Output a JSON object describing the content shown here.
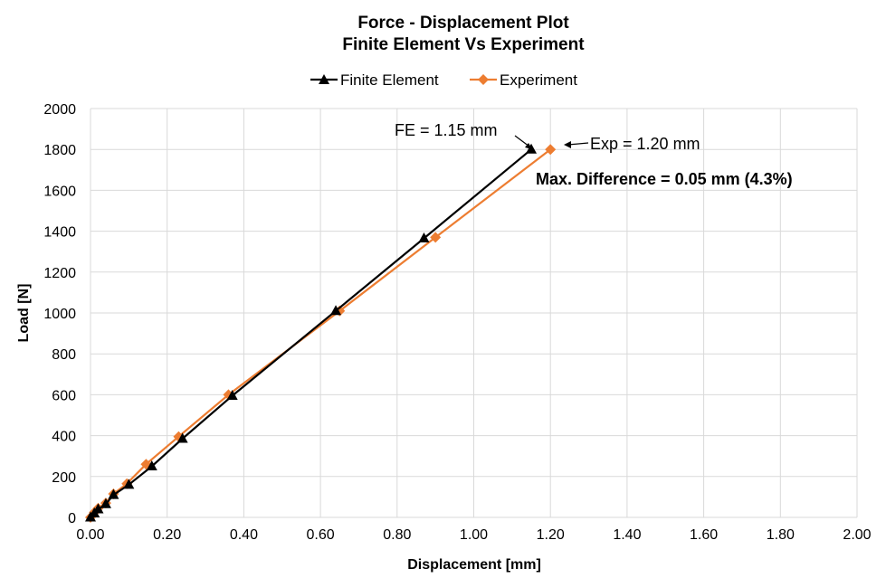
{
  "chart_data": {
    "type": "line",
    "title": "Force - Displacement Plot",
    "subtitle": "Finite Element Vs Experiment",
    "xlabel": "Displacement [mm]",
    "ylabel": "Load [N]",
    "xlim": [
      0,
      2.0
    ],
    "ylim": [
      0,
      2000
    ],
    "x_ticks": [
      "0.00",
      "0.20",
      "0.40",
      "0.60",
      "0.80",
      "1.00",
      "1.20",
      "1.40",
      "1.60",
      "1.80",
      "2.00"
    ],
    "y_ticks": [
      "0",
      "200",
      "400",
      "600",
      "800",
      "1000",
      "1200",
      "1400",
      "1600",
      "1800",
      "2000"
    ],
    "grid": "vertical and horizontal",
    "legend_position": "top",
    "series": [
      {
        "name": "Finite Element",
        "color": "#000000",
        "marker": "triangle",
        "points": [
          [
            0.0,
            0
          ],
          [
            0.01,
            20
          ],
          [
            0.02,
            40
          ],
          [
            0.04,
            65
          ],
          [
            0.06,
            110
          ],
          [
            0.1,
            160
          ],
          [
            0.16,
            250
          ],
          [
            0.24,
            385
          ],
          [
            0.37,
            595
          ],
          [
            0.64,
            1010
          ],
          [
            0.87,
            1365
          ],
          [
            1.15,
            1800
          ]
        ]
      },
      {
        "name": "Experiment",
        "color": "#ED7D31",
        "marker": "diamond",
        "points": [
          [
            0.0,
            0
          ],
          [
            0.01,
            25
          ],
          [
            0.02,
            45
          ],
          [
            0.04,
            70
          ],
          [
            0.06,
            115
          ],
          [
            0.095,
            165
          ],
          [
            0.145,
            260
          ],
          [
            0.23,
            395
          ],
          [
            0.36,
            600
          ],
          [
            0.65,
            1010
          ],
          [
            0.9,
            1370
          ],
          [
            1.2,
            1800
          ]
        ]
      }
    ],
    "annotations": {
      "fe": "FE = 1.15 mm",
      "exp": "Exp = 1.20 mm",
      "diff": "Max. Difference = 0.05 mm (4.3%)"
    }
  }
}
